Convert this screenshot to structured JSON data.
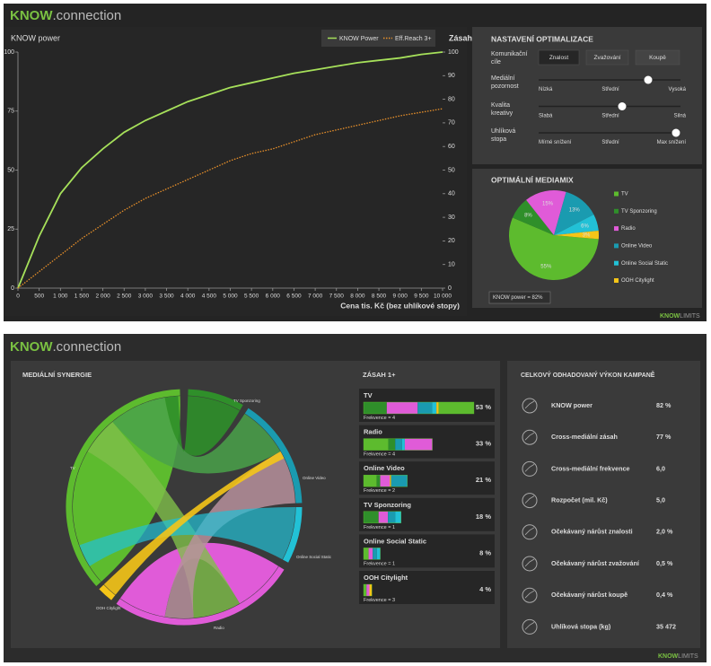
{
  "brand": {
    "bold": "KNOW",
    "suffix": ".connection"
  },
  "footer": {
    "bold": "KNOW",
    "suffix": "LIMITS"
  },
  "chart_data": [
    {
      "type": "line",
      "title": "KNOW power",
      "y2_label": "Zásah",
      "x_label": "Cena tis. Kč (bez uhlíkové stopy)",
      "x": [
        0,
        500,
        1000,
        1500,
        2000,
        2500,
        3000,
        3500,
        4000,
        4500,
        5000,
        5500,
        6000,
        6500,
        7000,
        7500,
        8000,
        8500,
        9000,
        9500,
        10000
      ],
      "series": [
        {
          "name": "KNOW Power",
          "color": "#a6e05a",
          "values": [
            0,
            22,
            40,
            51,
            59,
            66,
            71,
            75,
            79,
            82,
            85,
            87,
            89,
            91,
            92.5,
            94,
            95.5,
            96.5,
            97.5,
            99,
            100
          ]
        },
        {
          "name": "Eff.Reach 3+",
          "color": "#e8902a",
          "axis": "y2",
          "line_style": "dotted",
          "values": [
            0,
            7,
            14,
            21,
            27,
            33,
            38,
            42,
            46,
            50,
            54,
            57,
            59,
            62,
            65,
            67,
            69,
            71,
            73,
            74.5,
            76
          ]
        }
      ],
      "xlim": [
        0,
        10000
      ],
      "ylim": [
        0,
        100
      ],
      "y2lim": [
        0,
        100
      ],
      "xticks": [
        0,
        500,
        {
          "value": 1000,
          "label": "1 000"
        },
        {
          "value": 1500,
          "label": "1 500"
        },
        {
          "value": 2000,
          "label": "2 000"
        },
        {
          "value": 2500,
          "label": "2 500"
        },
        {
          "value": 3000,
          "label": "3 000"
        },
        {
          "value": 3500,
          "label": "3 500"
        },
        {
          "value": 4000,
          "label": "4 000"
        },
        {
          "value": 4500,
          "label": "4 500"
        },
        {
          "value": 5000,
          "label": "5 000"
        },
        {
          "value": 5500,
          "label": "5 500"
        },
        {
          "value": 6000,
          "label": "6 000"
        },
        {
          "value": 6500,
          "label": "6 500"
        },
        {
          "value": 7000,
          "label": "7 000"
        },
        {
          "value": 7500,
          "label": "7 500"
        },
        {
          "value": 8000,
          "label": "8 000"
        },
        {
          "value": 8500,
          "label": "8 500"
        },
        {
          "value": 9000,
          "label": "9 000"
        },
        {
          "value": 9500,
          "label": "9 500"
        },
        {
          "value": 10000,
          "label": "10 000"
        }
      ],
      "yticks": [
        0,
        25,
        50,
        75,
        100
      ],
      "y2ticks": [
        0,
        10,
        20,
        30,
        40,
        50,
        60,
        70,
        80,
        90,
        100
      ],
      "grid": false
    },
    {
      "type": "pie",
      "title": "OPTIMÁLNÍ MEDIAMIX",
      "categories": [
        "TV",
        "TV Sponzoring",
        "Radio",
        "Online Video",
        "Online Social Static",
        "OOH Citylight"
      ],
      "values": [
        55,
        8,
        15,
        13,
        6,
        3
      ],
      "value_labels": [
        "55%",
        "8%",
        "15%",
        "13%",
        "6%",
        "3%"
      ],
      "colors": [
        "#5dbb2e",
        "#2f8f2a",
        "#e05bd8",
        "#1a9bb0",
        "#22c1d6",
        "#f5c518"
      ],
      "annotation": "KNOW power = 82%",
      "legend": "right"
    }
  ],
  "settings": {
    "title": "NASTAVENÍ OPTIMALIZACE",
    "goal_label": "Komunikační cíle",
    "goals": [
      "Znalost",
      "Zvažování",
      "Koupě"
    ],
    "sliders": [
      {
        "label": "Mediální pozornost",
        "ticks": [
          "Nízká",
          "Střední",
          "Vysoká"
        ]
      },
      {
        "label": "Kvalita kreativy",
        "ticks": [
          "Slabá",
          "Střední",
          "Silná"
        ]
      },
      {
        "label": "Uhlíková stopa",
        "ticks": [
          "Mírné snížení",
          "Střední",
          "Max snížení"
        ]
      }
    ]
  },
  "synergy": {
    "title": "MEDIÁLNÍ SYNERGIE"
  },
  "reach": {
    "title": "ZÁSAH 1+",
    "items": [
      {
        "name": "TV",
        "value": 53,
        "value_label": "53 %",
        "frequency": "Frekvence = 4"
      },
      {
        "name": "Radio",
        "value": 33,
        "value_label": "33 %",
        "frequency": "Frekvence = 4"
      },
      {
        "name": "Online Video",
        "value": 21,
        "value_label": "21 %",
        "frequency": "Frekvence = 2"
      },
      {
        "name": "TV Sponzoring",
        "value": 18,
        "value_label": "18 %",
        "frequency": "Frekvence = 1"
      },
      {
        "name": "Online Social Static",
        "value": 8,
        "value_label": "8 %",
        "frequency": "Frekvence = 1"
      },
      {
        "name": "OOH Citylight",
        "value": 4,
        "value_label": "4 %",
        "frequency": "Frekvence = 3"
      }
    ]
  },
  "performance": {
    "title": "CELKOVÝ ODHADOVANÝ VÝKON KAMPANĚ",
    "rows": [
      {
        "label": "KNOW power",
        "value": "82 %"
      },
      {
        "label": "Cross-mediální zásah",
        "value": "77 %"
      },
      {
        "label": "Cross-mediální frekvence",
        "value": "6,0"
      },
      {
        "label": "Rozpočet (mil. Kč)",
        "value": "5,0"
      },
      {
        "label": "Očekávaný nárůst znalosti",
        "value": "2,0 %"
      },
      {
        "label": "Očekávaný nárůst zvažování",
        "value": "0,5 %"
      },
      {
        "label": "Očekávaný nárůst koupě",
        "value": "0,4 %"
      },
      {
        "label": "Uhlíková stopa (kg)",
        "value": "35 472"
      }
    ]
  }
}
